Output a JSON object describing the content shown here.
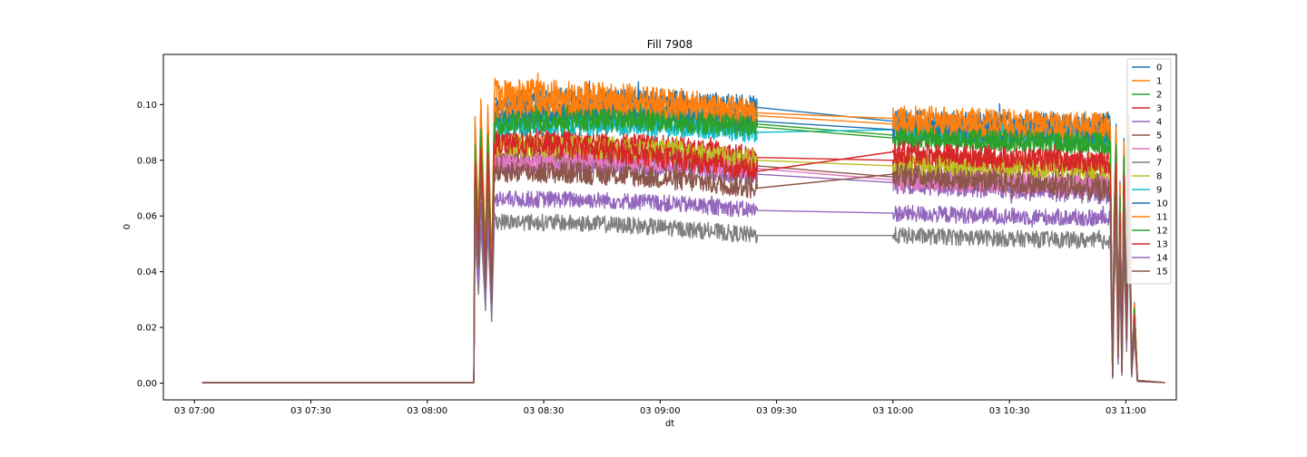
{
  "chart_data": {
    "type": "line",
    "title": "Fill 7908",
    "xlabel": "dt",
    "ylabel": "0",
    "xlim": [
      "03 06:52",
      "03 11:13"
    ],
    "ylim": [
      -0.006,
      0.118
    ],
    "xticks": [
      "03 07:00",
      "03 07:30",
      "03 08:00",
      "03 08:30",
      "03 09:00",
      "03 09:30",
      "03 10:00",
      "03 10:30",
      "03 11:00"
    ],
    "yticks": [
      "0.00",
      "0.02",
      "0.04",
      "0.06",
      "0.08",
      "0.10"
    ],
    "grid": false,
    "legend": "top-right",
    "segments": {
      "baseline": [
        "03 07:02",
        "03 08:12"
      ],
      "run1": [
        "03 08:12",
        "03 09:25"
      ],
      "gap": [
        "03 09:25",
        "03 10:00"
      ],
      "run2": [
        "03 10:00",
        "03 10:56"
      ],
      "dump": [
        "03 10:56",
        "03 11:03"
      ],
      "tail_end": "03 11:10"
    },
    "series": [
      {
        "name": "0",
        "color": "#1f77b4",
        "level_start": 0.101,
        "level_gap_start": 0.099,
        "level_gap_end": 0.094,
        "level_end": 0.093,
        "noise": 0.004
      },
      {
        "name": "1",
        "color": "#ff7f0e",
        "level_start": 0.104,
        "level_gap_start": 0.097,
        "level_gap_end": 0.095,
        "level_end": 0.092,
        "noise": 0.005
      },
      {
        "name": "2",
        "color": "#2ca02c",
        "level_start": 0.095,
        "level_gap_start": 0.093,
        "level_gap_end": 0.089,
        "level_end": 0.086,
        "noise": 0.004
      },
      {
        "name": "3",
        "color": "#d62728",
        "level_start": 0.088,
        "level_gap_start": 0.081,
        "level_gap_end": 0.08,
        "level_end": 0.079,
        "noise": 0.004
      },
      {
        "name": "4",
        "color": "#9467bd",
        "level_start": 0.078,
        "level_gap_start": 0.075,
        "level_gap_end": 0.072,
        "level_end": 0.068,
        "noise": 0.004
      },
      {
        "name": "5",
        "color": "#8c564b",
        "level_start": 0.08,
        "level_gap_start": 0.078,
        "level_gap_end": 0.074,
        "level_end": 0.072,
        "noise": 0.004
      },
      {
        "name": "6",
        "color": "#e377c2",
        "level_start": 0.079,
        "level_gap_start": 0.077,
        "level_gap_end": 0.073,
        "level_end": 0.071,
        "noise": 0.004
      },
      {
        "name": "7",
        "color": "#7f7f7f",
        "level_start": 0.058,
        "level_gap_start": 0.053,
        "level_gap_end": 0.053,
        "level_end": 0.051,
        "noise": 0.003
      },
      {
        "name": "8",
        "color": "#bcbd22",
        "level_start": 0.085,
        "level_gap_start": 0.08,
        "level_gap_end": 0.078,
        "level_end": 0.077,
        "noise": 0.004
      },
      {
        "name": "9",
        "color": "#17becf",
        "level_start": 0.092,
        "level_gap_start": 0.09,
        "level_gap_end": 0.091,
        "level_end": 0.089,
        "noise": 0.004
      },
      {
        "name": "10",
        "color": "#1f77b4",
        "level_start": 0.097,
        "level_gap_start": 0.094,
        "level_gap_end": 0.091,
        "level_end": 0.09,
        "noise": 0.004
      },
      {
        "name": "11",
        "color": "#ff7f0e",
        "level_start": 0.099,
        "level_gap_start": 0.096,
        "level_gap_end": 0.093,
        "level_end": 0.091,
        "noise": 0.004
      },
      {
        "name": "12",
        "color": "#2ca02c",
        "level_start": 0.093,
        "level_gap_start": 0.092,
        "level_gap_end": 0.088,
        "level_end": 0.086,
        "noise": 0.004
      },
      {
        "name": "13",
        "color": "#d62728",
        "level_start": 0.086,
        "level_gap_start": 0.076,
        "level_gap_end": 0.083,
        "level_end": 0.079,
        "noise": 0.004
      },
      {
        "name": "14",
        "color": "#9467bd",
        "level_start": 0.066,
        "level_gap_start": 0.062,
        "level_gap_end": 0.061,
        "level_end": 0.059,
        "noise": 0.003
      },
      {
        "name": "15",
        "color": "#8c564b",
        "level_start": 0.076,
        "level_gap_start": 0.07,
        "level_gap_end": 0.075,
        "level_end": 0.069,
        "noise": 0.004
      }
    ]
  }
}
